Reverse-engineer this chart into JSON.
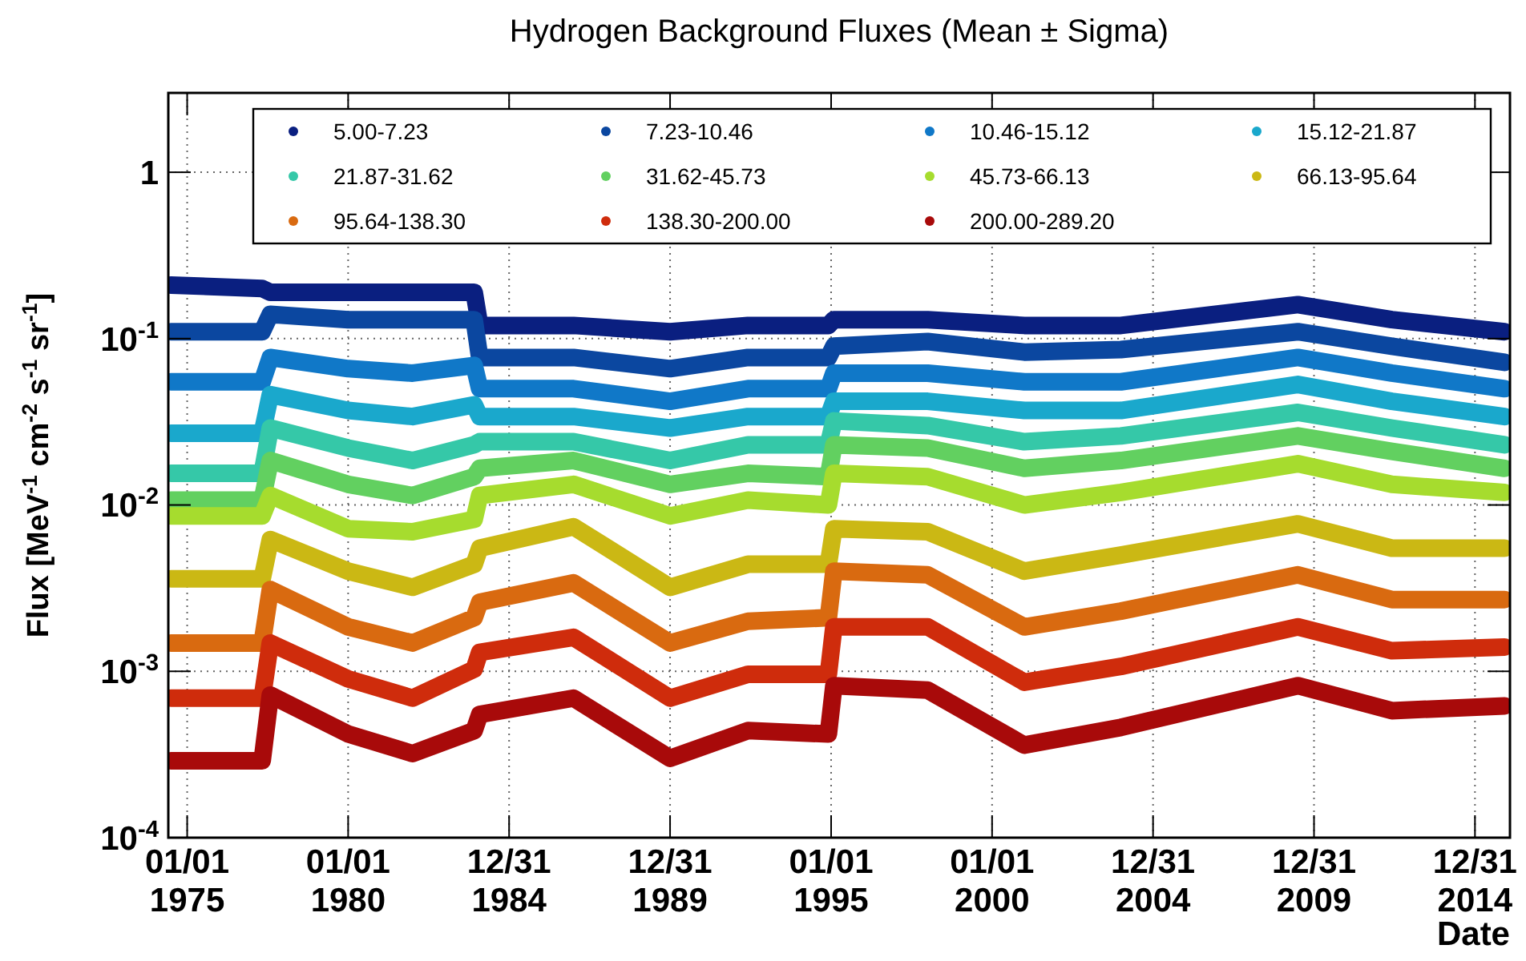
{
  "chart_data": {
    "type": "line",
    "title": "Hydrogen Background Fluxes (Mean ± Sigma)",
    "xlabel": "Date",
    "ylabel": "Flux [MeV$^{-1}$ cm$^{-2}$ s$^{-1}$ sr$^{-1}$]",
    "log": "y",
    "grid": true,
    "legend": "top",
    "line_style": "solid",
    "xlim": [
      "1974-06-01",
      "2016-02-01"
    ],
    "ylim": [
      0.0001,
      3
    ],
    "xticks": [
      {
        "value": "1975-01-01",
        "label": "01/01\n1975"
      },
      {
        "value": "1980-01-01",
        "label": "01/01\n1980"
      },
      {
        "value": "1984-12-31",
        "label": "12/31\n1984"
      },
      {
        "value": "1989-12-31",
        "label": "12/31\n1989"
      },
      {
        "value": "1995-01-01",
        "label": "01/01\n1995"
      },
      {
        "value": "2000-01-01",
        "label": "01/01\n2000"
      },
      {
        "value": "2004-12-31",
        "label": "12/31\n2004"
      },
      {
        "value": "2009-12-31",
        "label": "12/31\n2009"
      },
      {
        "value": "2014-12-31",
        "label": "12/31\n2014"
      }
    ],
    "yticks": [
      {
        "value": 0.0001,
        "label": "10$^{-4}$"
      },
      {
        "value": 0.001,
        "label": "10$^{-3}$"
      },
      {
        "value": 0.01,
        "label": "10$^{-2}$"
      },
      {
        "value": 0.1,
        "label": "10$^{-1}$"
      },
      1
    ],
    "x": [
      "1974-07",
      "1977-05",
      "1977-08",
      "1980-01",
      "1982-01",
      "1983-12",
      "1984-02",
      "1987-01",
      "1990-01",
      "1992-06",
      "1994-12",
      "1995-02",
      "1998-01",
      "2001-01",
      "2004-01",
      "2009-07",
      "2012-06",
      "2015-12"
    ],
    "series": [
      {
        "name": "5.00-7.23",
        "color": "#0a1f80",
        "values": [
          0.21,
          0.2,
          0.19,
          0.19,
          0.19,
          0.19,
          0.12,
          0.12,
          0.11,
          0.12,
          0.12,
          0.13,
          0.13,
          0.12,
          0.12,
          0.16,
          0.13,
          0.11
        ]
      },
      {
        "name": "7.23-10.46",
        "color": "#0b47a0",
        "values": [
          0.11,
          0.11,
          0.14,
          0.13,
          0.13,
          0.13,
          0.077,
          0.077,
          0.066,
          0.077,
          0.077,
          0.09,
          0.096,
          0.083,
          0.086,
          0.11,
          0.09,
          0.072
        ]
      },
      {
        "name": "10.46-15.12",
        "color": "#1078c8",
        "values": [
          0.055,
          0.055,
          0.077,
          0.066,
          0.062,
          0.069,
          0.05,
          0.05,
          0.042,
          0.05,
          0.05,
          0.062,
          0.062,
          0.055,
          0.055,
          0.077,
          0.062,
          0.05
        ]
      },
      {
        "name": "15.12-21.87",
        "color": "#1aa8cc",
        "values": [
          0.027,
          0.027,
          0.046,
          0.037,
          0.034,
          0.04,
          0.034,
          0.034,
          0.029,
          0.034,
          0.034,
          0.042,
          0.042,
          0.037,
          0.037,
          0.053,
          0.042,
          0.034
        ]
      },
      {
        "name": "21.87-31.62",
        "color": "#35c8a8",
        "values": [
          0.0155,
          0.0155,
          0.029,
          0.022,
          0.0185,
          0.023,
          0.024,
          0.024,
          0.0185,
          0.023,
          0.023,
          0.032,
          0.03,
          0.024,
          0.026,
          0.036,
          0.029,
          0.023
        ]
      },
      {
        "name": "31.62-45.73",
        "color": "#62d060",
        "values": [
          0.0107,
          0.0107,
          0.0185,
          0.0133,
          0.0114,
          0.0148,
          0.0166,
          0.0185,
          0.0133,
          0.0155,
          0.0148,
          0.023,
          0.022,
          0.0166,
          0.0185,
          0.026,
          0.021,
          0.0166
        ]
      },
      {
        "name": "45.73-66.13",
        "color": "#a6dc2e",
        "values": [
          0.0086,
          0.0086,
          0.0114,
          0.0072,
          0.0069,
          0.0082,
          0.0114,
          0.0133,
          0.0086,
          0.0107,
          0.01,
          0.0155,
          0.0148,
          0.01,
          0.0119,
          0.0177,
          0.0133,
          0.0119
        ]
      },
      {
        "name": "66.13-95.64",
        "color": "#cbb814",
        "values": [
          0.0036,
          0.0036,
          0.0062,
          0.004,
          0.0032,
          0.0044,
          0.0055,
          0.0074,
          0.0032,
          0.0044,
          0.0044,
          0.0072,
          0.0069,
          0.004,
          0.005,
          0.0077,
          0.0055,
          0.0055
        ]
      },
      {
        "name": "95.64-138.30",
        "color": "#d96a10",
        "values": [
          0.00148,
          0.00148,
          0.0031,
          0.00185,
          0.00148,
          0.0021,
          0.0026,
          0.0034,
          0.00148,
          0.002,
          0.0021,
          0.004,
          0.0038,
          0.00185,
          0.0023,
          0.0038,
          0.0027,
          0.0027
        ]
      },
      {
        "name": "138.30-200.00",
        "color": "#cf2c0c",
        "values": [
          0.00069,
          0.00069,
          0.00148,
          0.0009,
          0.00069,
          0.00103,
          0.0013,
          0.0016,
          0.00069,
          0.00096,
          0.00096,
          0.00185,
          0.00185,
          0.00086,
          0.00107,
          0.00185,
          0.00133,
          0.0014
        ]
      },
      {
        "name": "200.00-289.20",
        "color": "#a80a0a",
        "values": [
          0.00029,
          0.00029,
          0.00072,
          0.00042,
          0.00032,
          0.00044,
          0.00055,
          0.00069,
          0.0003,
          0.00044,
          0.00042,
          0.00082,
          0.00077,
          0.00036,
          0.00046,
          0.00082,
          0.00058,
          0.00062
        ]
      }
    ]
  }
}
